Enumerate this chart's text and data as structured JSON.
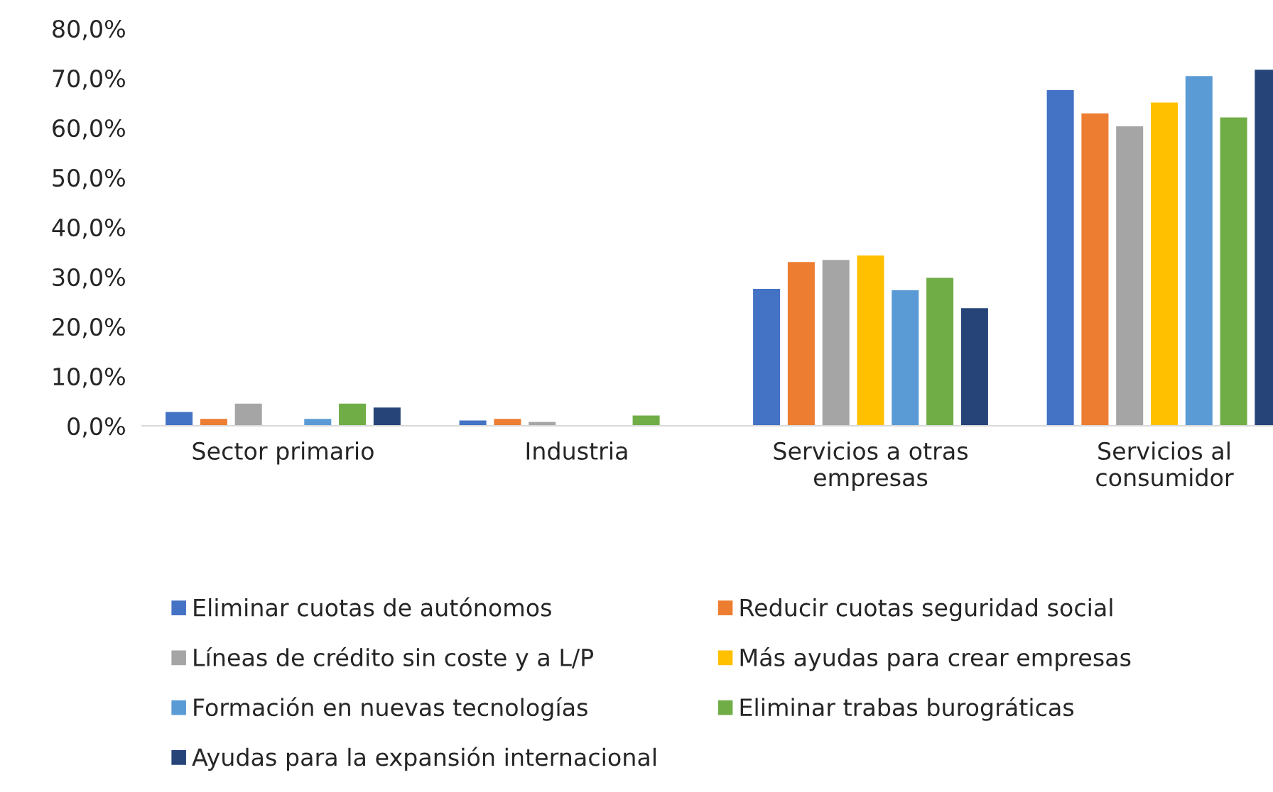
{
  "chart_data": {
    "type": "bar",
    "categories": [
      "Sector primario",
      "Industria",
      "Servicios a otras\nempresas",
      "Servicios al\nconsumidor"
    ],
    "series": [
      {
        "name": "Eliminar cuotas de autónomos",
        "color": "#4472c4",
        "values": [
          2.9,
          1.2,
          27.7,
          67.7
        ]
      },
      {
        "name": "Reducir cuotas seguridad social",
        "color": "#ed7d31",
        "values": [
          1.5,
          1.5,
          33.1,
          63.0
        ]
      },
      {
        "name": "Líneas de crédito sin coste y a L/P",
        "color": "#a5a5a5",
        "values": [
          4.6,
          0.9,
          33.5,
          60.4
        ]
      },
      {
        "name": "Más ayudas para crear empresas",
        "color": "#ffc000",
        "values": [
          null,
          null,
          34.4,
          65.2
        ]
      },
      {
        "name": "Formación en nuevas tecnologías",
        "color": "#5b9bd5",
        "values": [
          1.5,
          null,
          27.4,
          70.5
        ]
      },
      {
        "name": "Eliminar trabas burográticas",
        "color": "#70ad47",
        "values": [
          4.6,
          2.2,
          29.9,
          62.2
        ]
      },
      {
        "name": "Ayudas para la expansión internacional",
        "color": "#264478",
        "values": [
          3.8,
          null,
          23.8,
          71.8
        ]
      }
    ],
    "ylim": [
      0,
      80
    ],
    "yticks": [
      {
        "value": 0,
        "label": "0,0%"
      },
      {
        "value": 10,
        "label": "10,0%"
      },
      {
        "value": 20,
        "label": "20,0%"
      },
      {
        "value": 30,
        "label": "30,0%"
      },
      {
        "value": 40,
        "label": "40,0%"
      },
      {
        "value": 50,
        "label": "50,0%"
      },
      {
        "value": 60,
        "label": "60,0%"
      },
      {
        "value": 70,
        "label": "70,0%"
      },
      {
        "value": 80,
        "label": "80,0%"
      }
    ],
    "grid": false,
    "legend": "bottom"
  }
}
